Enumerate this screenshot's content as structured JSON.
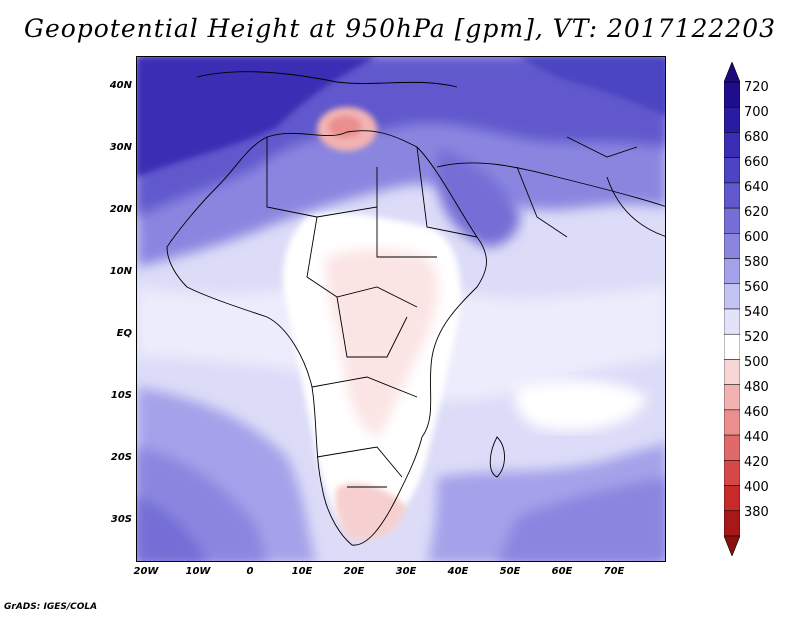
{
  "title": "Geopotential Height at 950hPa [gpm], VT: 2017122203",
  "footer": "GrADS: IGES/COLA",
  "lat_labels": [
    "40N",
    "30N",
    "20N",
    "10N",
    "EQ",
    "10S",
    "20S",
    "30S"
  ],
  "lon_labels": [
    "20W",
    "10W",
    "0",
    "10E",
    "20E",
    "30E",
    "40E",
    "50E",
    "60E",
    "70E"
  ],
  "colorbar": {
    "levels": [
      "720",
      "700",
      "680",
      "660",
      "640",
      "620",
      "600",
      "580",
      "560",
      "540",
      "520",
      "500",
      "480",
      "460",
      "440",
      "420",
      "400",
      "380"
    ],
    "colors": [
      "#1e0e8c",
      "#2a1ca0",
      "#3a2eb4",
      "#4c44c2",
      "#6058cc",
      "#746ed6",
      "#8a86e0",
      "#a4a2ea",
      "#c4c4f4",
      "#e2e2fa",
      "#ffffff",
      "#f8d6d6",
      "#f2b2b2",
      "#ea8e8e",
      "#e06a6a",
      "#d64848",
      "#c82a2a",
      "#a81818"
    ],
    "top_arrow_color": "#1a0a7a",
    "bottom_arrow_color": "#8a1010"
  }
}
